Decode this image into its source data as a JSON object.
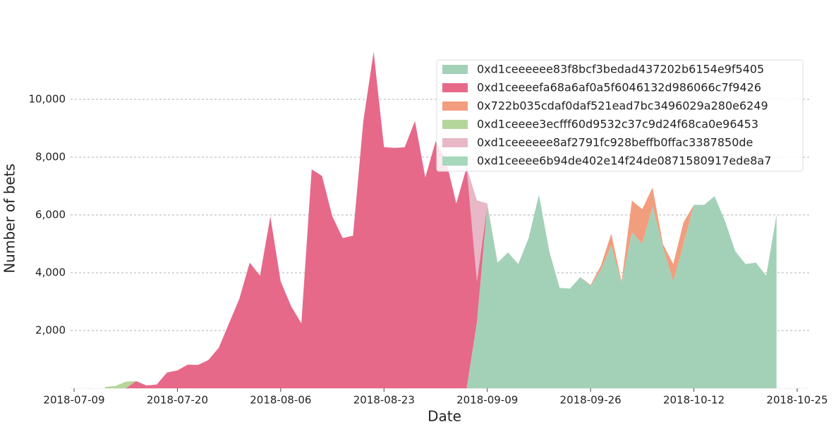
{
  "chart_data": {
    "type": "area",
    "stacked": true,
    "x_label": "Date",
    "y_label": "Number of bets",
    "x": [
      3,
      4,
      5,
      6,
      7,
      8,
      9,
      10,
      11,
      12,
      13,
      14,
      15,
      16,
      17,
      18,
      19,
      20,
      21,
      22,
      23,
      24,
      25,
      26,
      27,
      28,
      29,
      30,
      31,
      32,
      33,
      34,
      35,
      36,
      37,
      38,
      39,
      40,
      41,
      42,
      43,
      44,
      45,
      46,
      47,
      48,
      49,
      50,
      51,
      52,
      53,
      54,
      55,
      56,
      57,
      58,
      59,
      60,
      61,
      62,
      63,
      64,
      65,
      66,
      67,
      68
    ],
    "xlim": [
      0,
      70
    ],
    "xticks": [
      {
        "value": 0,
        "label": "2018-07-09"
      },
      {
        "value": 10,
        "label": "2018-07-20"
      },
      {
        "value": 20,
        "label": "2018-08-06"
      },
      {
        "value": 30,
        "label": "2018-08-23"
      },
      {
        "value": 40,
        "label": "2018-09-09"
      },
      {
        "value": 50,
        "label": "2018-09-26"
      },
      {
        "value": 60,
        "label": "2018-10-12"
      },
      {
        "value": 70,
        "label": "2018-10-25"
      }
    ],
    "ylim": [
      0,
      12000
    ],
    "yticks": [
      {
        "value": 2000,
        "label": "2,000"
      },
      {
        "value": 4000,
        "label": "4,000"
      },
      {
        "value": 6000,
        "label": "6,000"
      },
      {
        "value": 8000,
        "label": "8,000"
      },
      {
        "value": 10000,
        "label": "10,000"
      }
    ],
    "grid": true,
    "legend": "upper right",
    "series": [
      {
        "name": "0xd1ceeeeee83f8bcf3bedad437202b6154e9f5405",
        "color": "#a3d1b8",
        "values": [
          0,
          0,
          0,
          0,
          0,
          0,
          0,
          0,
          0,
          0,
          0,
          0,
          0,
          0,
          0,
          0,
          0,
          0,
          0,
          0,
          0,
          0,
          0,
          0,
          0,
          0,
          0,
          0,
          0,
          0,
          0,
          0,
          0,
          0,
          0,
          0,
          2300,
          6350,
          4350,
          4700,
          4300,
          5200,
          6700,
          4750,
          3480,
          3450,
          3850,
          3550,
          4100,
          4950,
          3650,
          5400,
          5000,
          6300,
          4900,
          3700,
          5000,
          6350,
          6350,
          6650,
          5800,
          4750,
          4300,
          4350,
          3900,
          6000
        ]
      },
      {
        "name": "0xd1ceeeefa68a6af0a5f6046132d986066c7f9426",
        "color": "#e6698a",
        "values": [
          0,
          0,
          0,
          250,
          100,
          130,
          550,
          620,
          820,
          810,
          980,
          1400,
          2250,
          3100,
          4350,
          3900,
          5950,
          3700,
          2850,
          2250,
          7580,
          7350,
          5950,
          5200,
          5280,
          9250,
          11650,
          8350,
          8320,
          8340,
          9250,
          7300,
          8550,
          7900,
          6400,
          7650,
          1400,
          0,
          0,
          0,
          0,
          0,
          0,
          0,
          0,
          0,
          0,
          0,
          0,
          0,
          0,
          0,
          0,
          0,
          0,
          0,
          0,
          0,
          0,
          0,
          0,
          0,
          0,
          0,
          0,
          0
        ]
      },
      {
        "name": "0x722b035cdaf0daf521ead7bc3496029a280e6249",
        "color": "#f29e7e",
        "values": [
          0,
          0,
          0,
          0,
          0,
          0,
          0,
          0,
          0,
          0,
          0,
          0,
          0,
          0,
          0,
          0,
          0,
          0,
          0,
          0,
          0,
          0,
          0,
          0,
          0,
          0,
          0,
          0,
          0,
          0,
          0,
          0,
          0,
          0,
          0,
          0,
          0,
          0,
          0,
          0,
          0,
          0,
          0,
          0,
          0,
          0,
          0,
          30,
          150,
          400,
          50,
          1100,
          1200,
          650,
          100,
          600,
          750,
          0,
          0,
          0,
          0,
          0,
          0,
          0,
          0,
          0
        ]
      },
      {
        "name": "0xd1ceeee3ecfff60d9532c37c9d24f68ca0e96453",
        "color": "#b5d69b",
        "values": [
          50,
          80,
          230,
          0,
          0,
          0,
          0,
          0,
          0,
          0,
          0,
          0,
          0,
          0,
          0,
          0,
          0,
          0,
          0,
          0,
          0,
          0,
          0,
          0,
          0,
          0,
          0,
          0,
          0,
          0,
          0,
          0,
          0,
          0,
          0,
          0,
          0,
          0,
          0,
          0,
          0,
          0,
          0,
          0,
          0,
          0,
          0,
          0,
          0,
          0,
          0,
          0,
          0,
          0,
          0,
          0,
          0,
          0,
          0,
          0,
          0,
          0,
          0,
          0,
          0,
          0
        ]
      },
      {
        "name": "0xd1ceeeeee8af2791fc928beffb0ffac3387850de",
        "color": "#e8b8c6",
        "values": [
          0,
          0,
          0,
          0,
          0,
          0,
          0,
          0,
          0,
          0,
          0,
          0,
          0,
          0,
          0,
          0,
          0,
          0,
          0,
          0,
          0,
          0,
          0,
          0,
          0,
          0,
          0,
          0,
          0,
          0,
          0,
          0,
          0,
          0,
          0,
          0,
          2800,
          50,
          0,
          0,
          0,
          0,
          0,
          0,
          0,
          0,
          0,
          0,
          0,
          0,
          0,
          0,
          0,
          0,
          0,
          0,
          0,
          0,
          0,
          0,
          0,
          0,
          0,
          0,
          0,
          0
        ]
      },
      {
        "name": "0xd1ceeee6b94de402e14f24de0871580917ede8a7",
        "color": "#a6d8bb",
        "values": [
          0,
          0,
          0,
          0,
          0,
          0,
          0,
          0,
          0,
          0,
          0,
          0,
          0,
          0,
          0,
          0,
          0,
          0,
          0,
          0,
          0,
          0,
          0,
          0,
          0,
          0,
          0,
          0,
          0,
          0,
          0,
          0,
          0,
          0,
          0,
          0,
          0,
          0,
          0,
          0,
          0,
          0,
          0,
          0,
          0,
          0,
          0,
          0,
          0,
          0,
          0,
          0,
          0,
          0,
          0,
          0,
          0,
          0,
          0,
          0,
          0,
          0,
          0,
          0,
          0,
          0
        ]
      }
    ]
  }
}
